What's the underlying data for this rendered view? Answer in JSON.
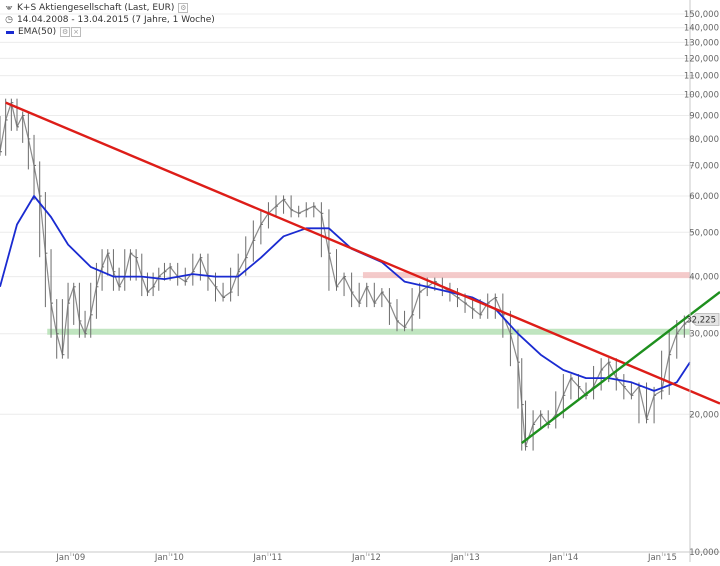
{
  "legend": {
    "title": "K+S Aktiengesellschaft (Last, EUR)",
    "range": "14.04.2008 - 13.04.2015 (7 Jahre, 1 Woche)",
    "ema": "EMA(50)"
  },
  "chart_data": {
    "type": "line",
    "yscale": "log",
    "ylim": [
      10000,
      150000
    ],
    "y_ticks": [
      10000,
      20000,
      30000,
      40000,
      50000,
      60000,
      70000,
      80000,
      90000,
      100000,
      110000,
      120000,
      130000,
      140000,
      150000
    ],
    "y_tick_labels": [
      "10,000",
      "20,000",
      "30,000",
      "40,000",
      "50,000",
      "60,000",
      "70,000",
      "80,000",
      "90,000",
      "100,000",
      "110,000",
      "120,000",
      "130,000",
      "140,000",
      "150,000"
    ],
    "x_ticks": [
      "2009-01-01",
      "2010-01-01",
      "2011-01-01",
      "2012-01-01",
      "2013-01-01",
      "2014-01-01",
      "2015-01-01"
    ],
    "x_tick_labels": [
      "Jan '09",
      "Jan '10",
      "Jan '11",
      "Jan '12",
      "Jan '13",
      "Jan '14",
      "Jan '15"
    ],
    "xlim": [
      "2008-04-14",
      "2015-04-13"
    ],
    "last_price": {
      "value": 32225,
      "label": "32,225"
    },
    "price": {
      "name": "",
      "color": "#555555",
      "x": [
        "2008-04-14",
        "2008-05-05",
        "2008-05-26",
        "2008-06-16",
        "2008-07-07",
        "2008-07-28",
        "2008-08-18",
        "2008-09-08",
        "2008-09-29",
        "2008-10-20",
        "2008-11-10",
        "2008-12-01",
        "2008-12-22",
        "2009-01-12",
        "2009-02-02",
        "2009-02-23",
        "2009-03-16",
        "2009-04-06",
        "2009-04-27",
        "2009-05-18",
        "2009-06-08",
        "2009-06-29",
        "2009-07-20",
        "2009-08-10",
        "2009-08-31",
        "2009-09-21",
        "2009-10-12",
        "2009-11-02",
        "2009-11-23",
        "2009-12-14",
        "2010-01-04",
        "2010-02-01",
        "2010-03-01",
        "2010-03-29",
        "2010-04-26",
        "2010-05-24",
        "2010-06-21",
        "2010-07-19",
        "2010-08-16",
        "2010-09-13",
        "2010-10-11",
        "2010-11-08",
        "2010-12-06",
        "2011-01-03",
        "2011-01-31",
        "2011-02-28",
        "2011-03-28",
        "2011-04-25",
        "2011-05-23",
        "2011-06-20",
        "2011-07-18",
        "2011-08-15",
        "2011-09-12",
        "2011-10-10",
        "2011-11-07",
        "2011-12-05",
        "2012-01-02",
        "2012-01-30",
        "2012-02-27",
        "2012-03-26",
        "2012-04-23",
        "2012-05-21",
        "2012-06-18",
        "2012-07-16",
        "2012-08-13",
        "2012-09-10",
        "2012-10-08",
        "2012-11-05",
        "2012-12-03",
        "2012-12-31",
        "2013-01-28",
        "2013-02-25",
        "2013-03-25",
        "2013-04-22",
        "2013-05-20",
        "2013-06-17",
        "2013-07-15",
        "2013-07-29",
        "2013-08-12",
        "2013-09-09",
        "2013-10-07",
        "2013-11-04",
        "2013-12-02",
        "2013-12-30",
        "2014-01-27",
        "2014-02-24",
        "2014-03-24",
        "2014-04-21",
        "2014-05-19",
        "2014-06-16",
        "2014-07-14",
        "2014-08-11",
        "2014-09-08",
        "2014-10-06",
        "2014-11-03",
        "2014-12-01",
        "2014-12-29",
        "2015-01-26",
        "2015-02-23",
        "2015-03-23",
        "2015-04-13"
      ],
      "values": [
        75000,
        88000,
        96000,
        85000,
        90000,
        80000,
        70000,
        60000,
        45000,
        35000,
        30000,
        27000,
        35000,
        38000,
        32000,
        30000,
        33000,
        38000,
        42000,
        45000,
        41000,
        38000,
        40000,
        45000,
        44000,
        40000,
        37000,
        38000,
        40000,
        41000,
        42000,
        40000,
        39000,
        41000,
        44000,
        40000,
        38000,
        36000,
        37000,
        41000,
        44000,
        48000,
        52000,
        55000,
        57000,
        59000,
        56000,
        55000,
        56000,
        57000,
        55000,
        45000,
        38000,
        40000,
        37000,
        35000,
        38000,
        35000,
        37000,
        35000,
        32000,
        31000,
        33000,
        37000,
        38000,
        39000,
        38000,
        37000,
        36000,
        35000,
        34000,
        33000,
        35000,
        36000,
        33000,
        30000,
        26000,
        21000,
        17000,
        19000,
        20000,
        19000,
        20000,
        22000,
        24000,
        23000,
        22000,
        23000,
        25000,
        26000,
        24000,
        23000,
        22000,
        23000,
        19500,
        22000,
        22500,
        27000,
        30000,
        31500,
        32225
      ]
    },
    "ema50": {
      "name": "EMA(50)",
      "color": "#1a2bd1",
      "x": [
        "2008-04-14",
        "2008-06-16",
        "2008-08-18",
        "2008-10-20",
        "2008-12-22",
        "2009-03-16",
        "2009-06-08",
        "2009-09-21",
        "2009-12-14",
        "2010-03-29",
        "2010-06-21",
        "2010-09-13",
        "2010-12-06",
        "2011-02-28",
        "2011-05-23",
        "2011-08-15",
        "2011-11-07",
        "2012-02-27",
        "2012-05-21",
        "2012-08-13",
        "2012-11-05",
        "2013-01-28",
        "2013-04-22",
        "2013-07-15",
        "2013-10-07",
        "2013-12-30",
        "2014-03-24",
        "2014-06-16",
        "2014-09-08",
        "2014-12-01",
        "2015-02-23",
        "2015-04-13"
      ],
      "values": [
        38000,
        52000,
        60000,
        54000,
        47000,
        42000,
        40000,
        40000,
        39500,
        40500,
        40000,
        40000,
        44000,
        49000,
        51000,
        51000,
        46000,
        43000,
        39000,
        38000,
        37000,
        36000,
        34000,
        30000,
        27000,
        25000,
        24000,
        24000,
        23500,
        22500,
        23500,
        26000
      ]
    },
    "lines": [
      {
        "name": "",
        "color": "#dd1d18",
        "from": {
          "x": "2008-05-05",
          "y": 96000
        },
        "to": {
          "x": "2015-04-13",
          "y": 22500
        }
      },
      {
        "name": "",
        "color": "#1e8f1e",
        "from": {
          "x": "2013-07-29",
          "y": 17300
        },
        "to": {
          "x": "2015-04-13",
          "y": 33000
        }
      }
    ],
    "bands": [
      {
        "name": "",
        "y": 30300,
        "from": "2008-10-06",
        "color": "#b9e2b9"
      },
      {
        "name": "",
        "y": 40300,
        "from": "2011-12-19",
        "color": "#f3c4c4"
      }
    ],
    "grid": "horizontal-only",
    "legend": "top-left"
  }
}
